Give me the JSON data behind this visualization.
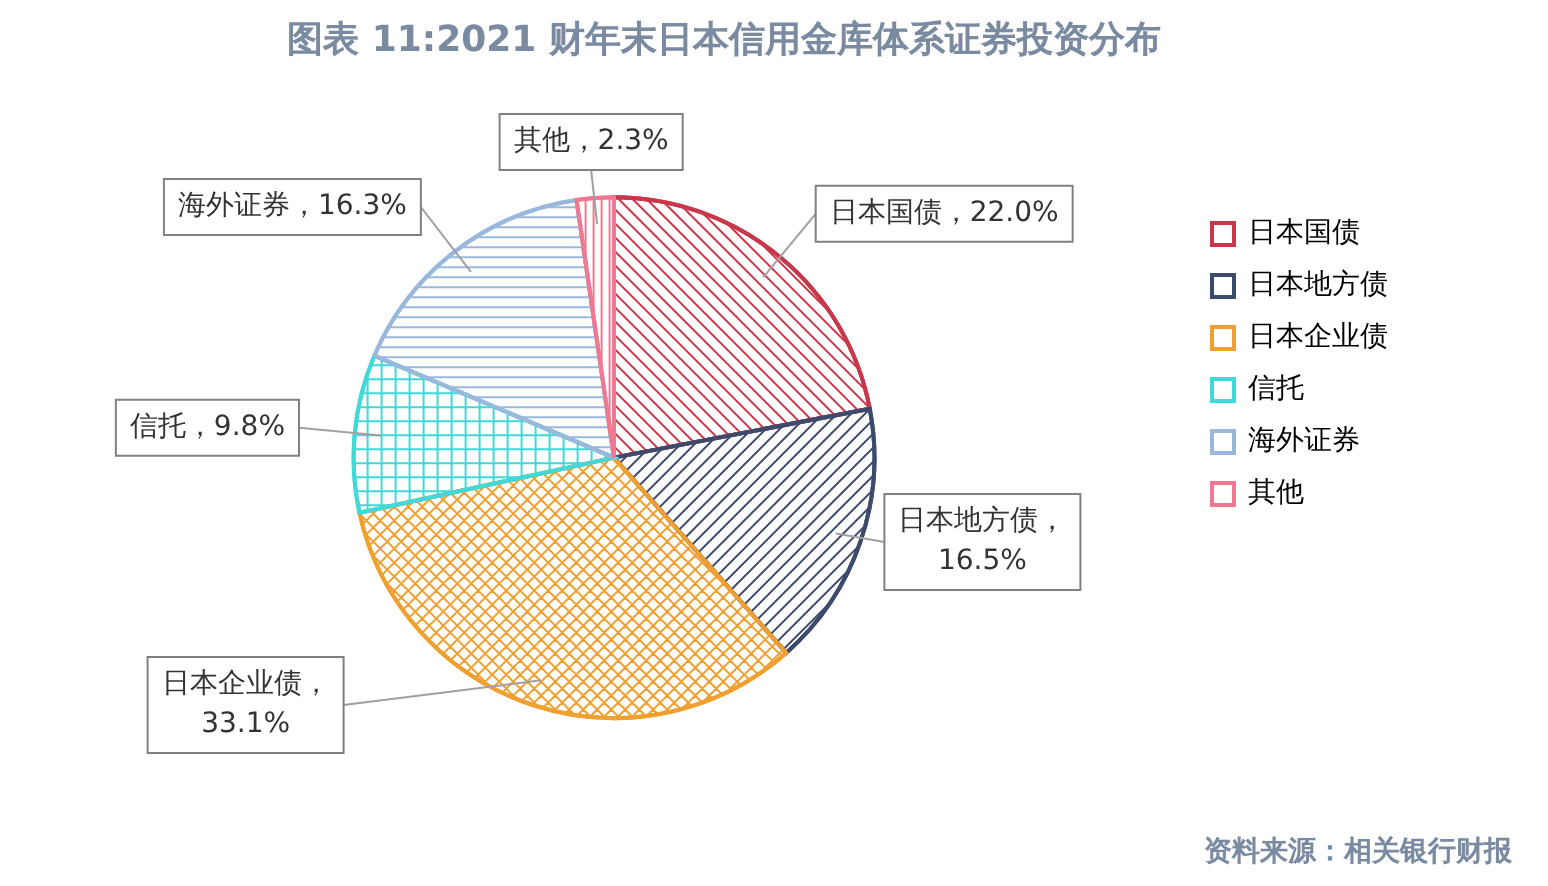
{
  "chart_data": {
    "type": "pie",
    "title": "图表 11:2021 财年末日本信用金库体系证券投资分布",
    "categories": [
      "日本国债",
      "日本地方债",
      "日本企业债",
      "信托",
      "海外证券",
      "其他"
    ],
    "values": [
      22.0,
      16.5,
      33.1,
      9.8,
      16.3,
      2.3
    ],
    "colors": [
      "#c8374a",
      "#3c4a6b",
      "#f0a030",
      "#40d8d8",
      "#9ab8dc",
      "#f07890"
    ],
    "value_labels": [
      "日本国债，22.0%",
      "日本地方债，16.5%",
      "日本企业债，33.1%",
      "信托，9.8%",
      "海外证券，16.3%",
      "其他，2.3%"
    ],
    "legend": "right",
    "annotations": [
      "资料来源：相关银行财报"
    ]
  }
}
